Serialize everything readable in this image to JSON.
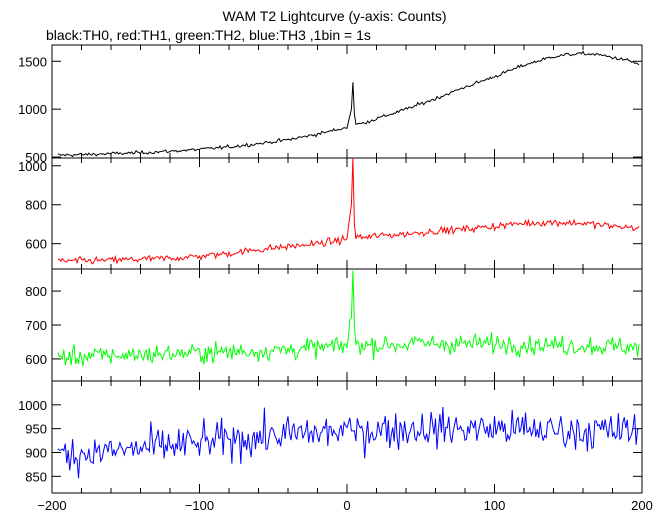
{
  "chart_data": {
    "title": "WAM T2 Lightcurve (y-axis: Counts)",
    "subtitle": "black:TH0, red:TH1, green:TH2, blue:TH3 ,1bin = 1s",
    "type": "line",
    "x_ticks": [
      -200,
      -100,
      0,
      100,
      200
    ],
    "xlim": [
      -200,
      200
    ],
    "grid": false,
    "panels": [
      {
        "name": "TH0",
        "color": "#000000",
        "ylim": [
          490,
          1670
        ],
        "y_ticks": [
          500,
          1000,
          1500
        ],
        "x": [
          -195,
          -180,
          -160,
          -140,
          -120,
          -100,
          -80,
          -60,
          -40,
          -20,
          -10,
          0,
          3,
          4,
          5,
          6,
          10,
          20,
          40,
          60,
          80,
          100,
          120,
          140,
          150,
          160,
          170,
          180,
          190,
          198
        ],
        "values": [
          520,
          525,
          535,
          545,
          560,
          580,
          605,
          640,
          680,
          740,
          775,
          810,
          1000,
          1280,
          950,
          840,
          850,
          900,
          1000,
          1110,
          1230,
          1340,
          1460,
          1550,
          1570,
          1580,
          1570,
          1540,
          1510,
          1470
        ]
      },
      {
        "name": "TH1",
        "color": "#ff0000",
        "ylim": [
          470,
          1040
        ],
        "y_ticks": [
          600,
          800,
          1000
        ],
        "x": [
          -195,
          -180,
          -160,
          -140,
          -120,
          -100,
          -80,
          -60,
          -40,
          -20,
          -10,
          0,
          3,
          4,
          5,
          6,
          10,
          20,
          40,
          60,
          80,
          100,
          120,
          140,
          160,
          180,
          198
        ],
        "values": [
          510,
          512,
          515,
          520,
          525,
          535,
          550,
          570,
          585,
          600,
          610,
          625,
          800,
          1040,
          700,
          640,
          630,
          640,
          650,
          665,
          675,
          690,
          705,
          710,
          705,
          690,
          680
        ]
      },
      {
        "name": "TH2",
        "color": "#00ff00",
        "ylim": [
          535,
          865
        ],
        "y_ticks": [
          600,
          700,
          800
        ],
        "x": [
          -195,
          -150,
          -100,
          -50,
          -10,
          0,
          3,
          4,
          5,
          6,
          10,
          50,
          100,
          150,
          198
        ],
        "values": [
          605,
          612,
          618,
          625,
          635,
          640,
          720,
          860,
          700,
          650,
          640,
          645,
          645,
          640,
          635
        ]
      },
      {
        "name": "TH3",
        "color": "#0000ff",
        "ylim": [
          815,
          1050
        ],
        "y_ticks": [
          850,
          900,
          950,
          1000
        ],
        "x": [
          -195,
          -150,
          -100,
          -50,
          0,
          50,
          100,
          150,
          198
        ],
        "values": [
          895,
          905,
          920,
          935,
          945,
          950,
          950,
          945,
          945
        ]
      }
    ]
  }
}
